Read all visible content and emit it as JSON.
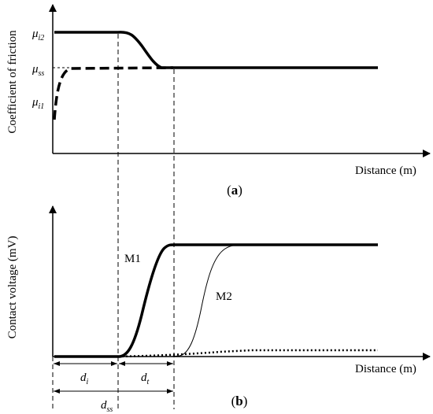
{
  "panel_a": {
    "y_axis_label": "Coefficient of friction",
    "x_axis_label": "Distance (m)",
    "panel_label_open": "(",
    "panel_label_letter": "a",
    "panel_label_close": ")",
    "mu_symbol": "μ",
    "sub_i2": "i2",
    "sub_ss": "ss",
    "sub_i1": "i1"
  },
  "panel_b": {
    "y_axis_label": "Contact voltage (mV)",
    "x_axis_label": "Distance (m)",
    "panel_label_open": "(",
    "panel_label_letter": "b",
    "panel_label_close": ")",
    "curve_m1_label": "M1",
    "curve_m2_label": "M2",
    "d_symbol": "d",
    "sub_i": "i",
    "sub_t": "t",
    "sub_ss": "ss"
  }
}
